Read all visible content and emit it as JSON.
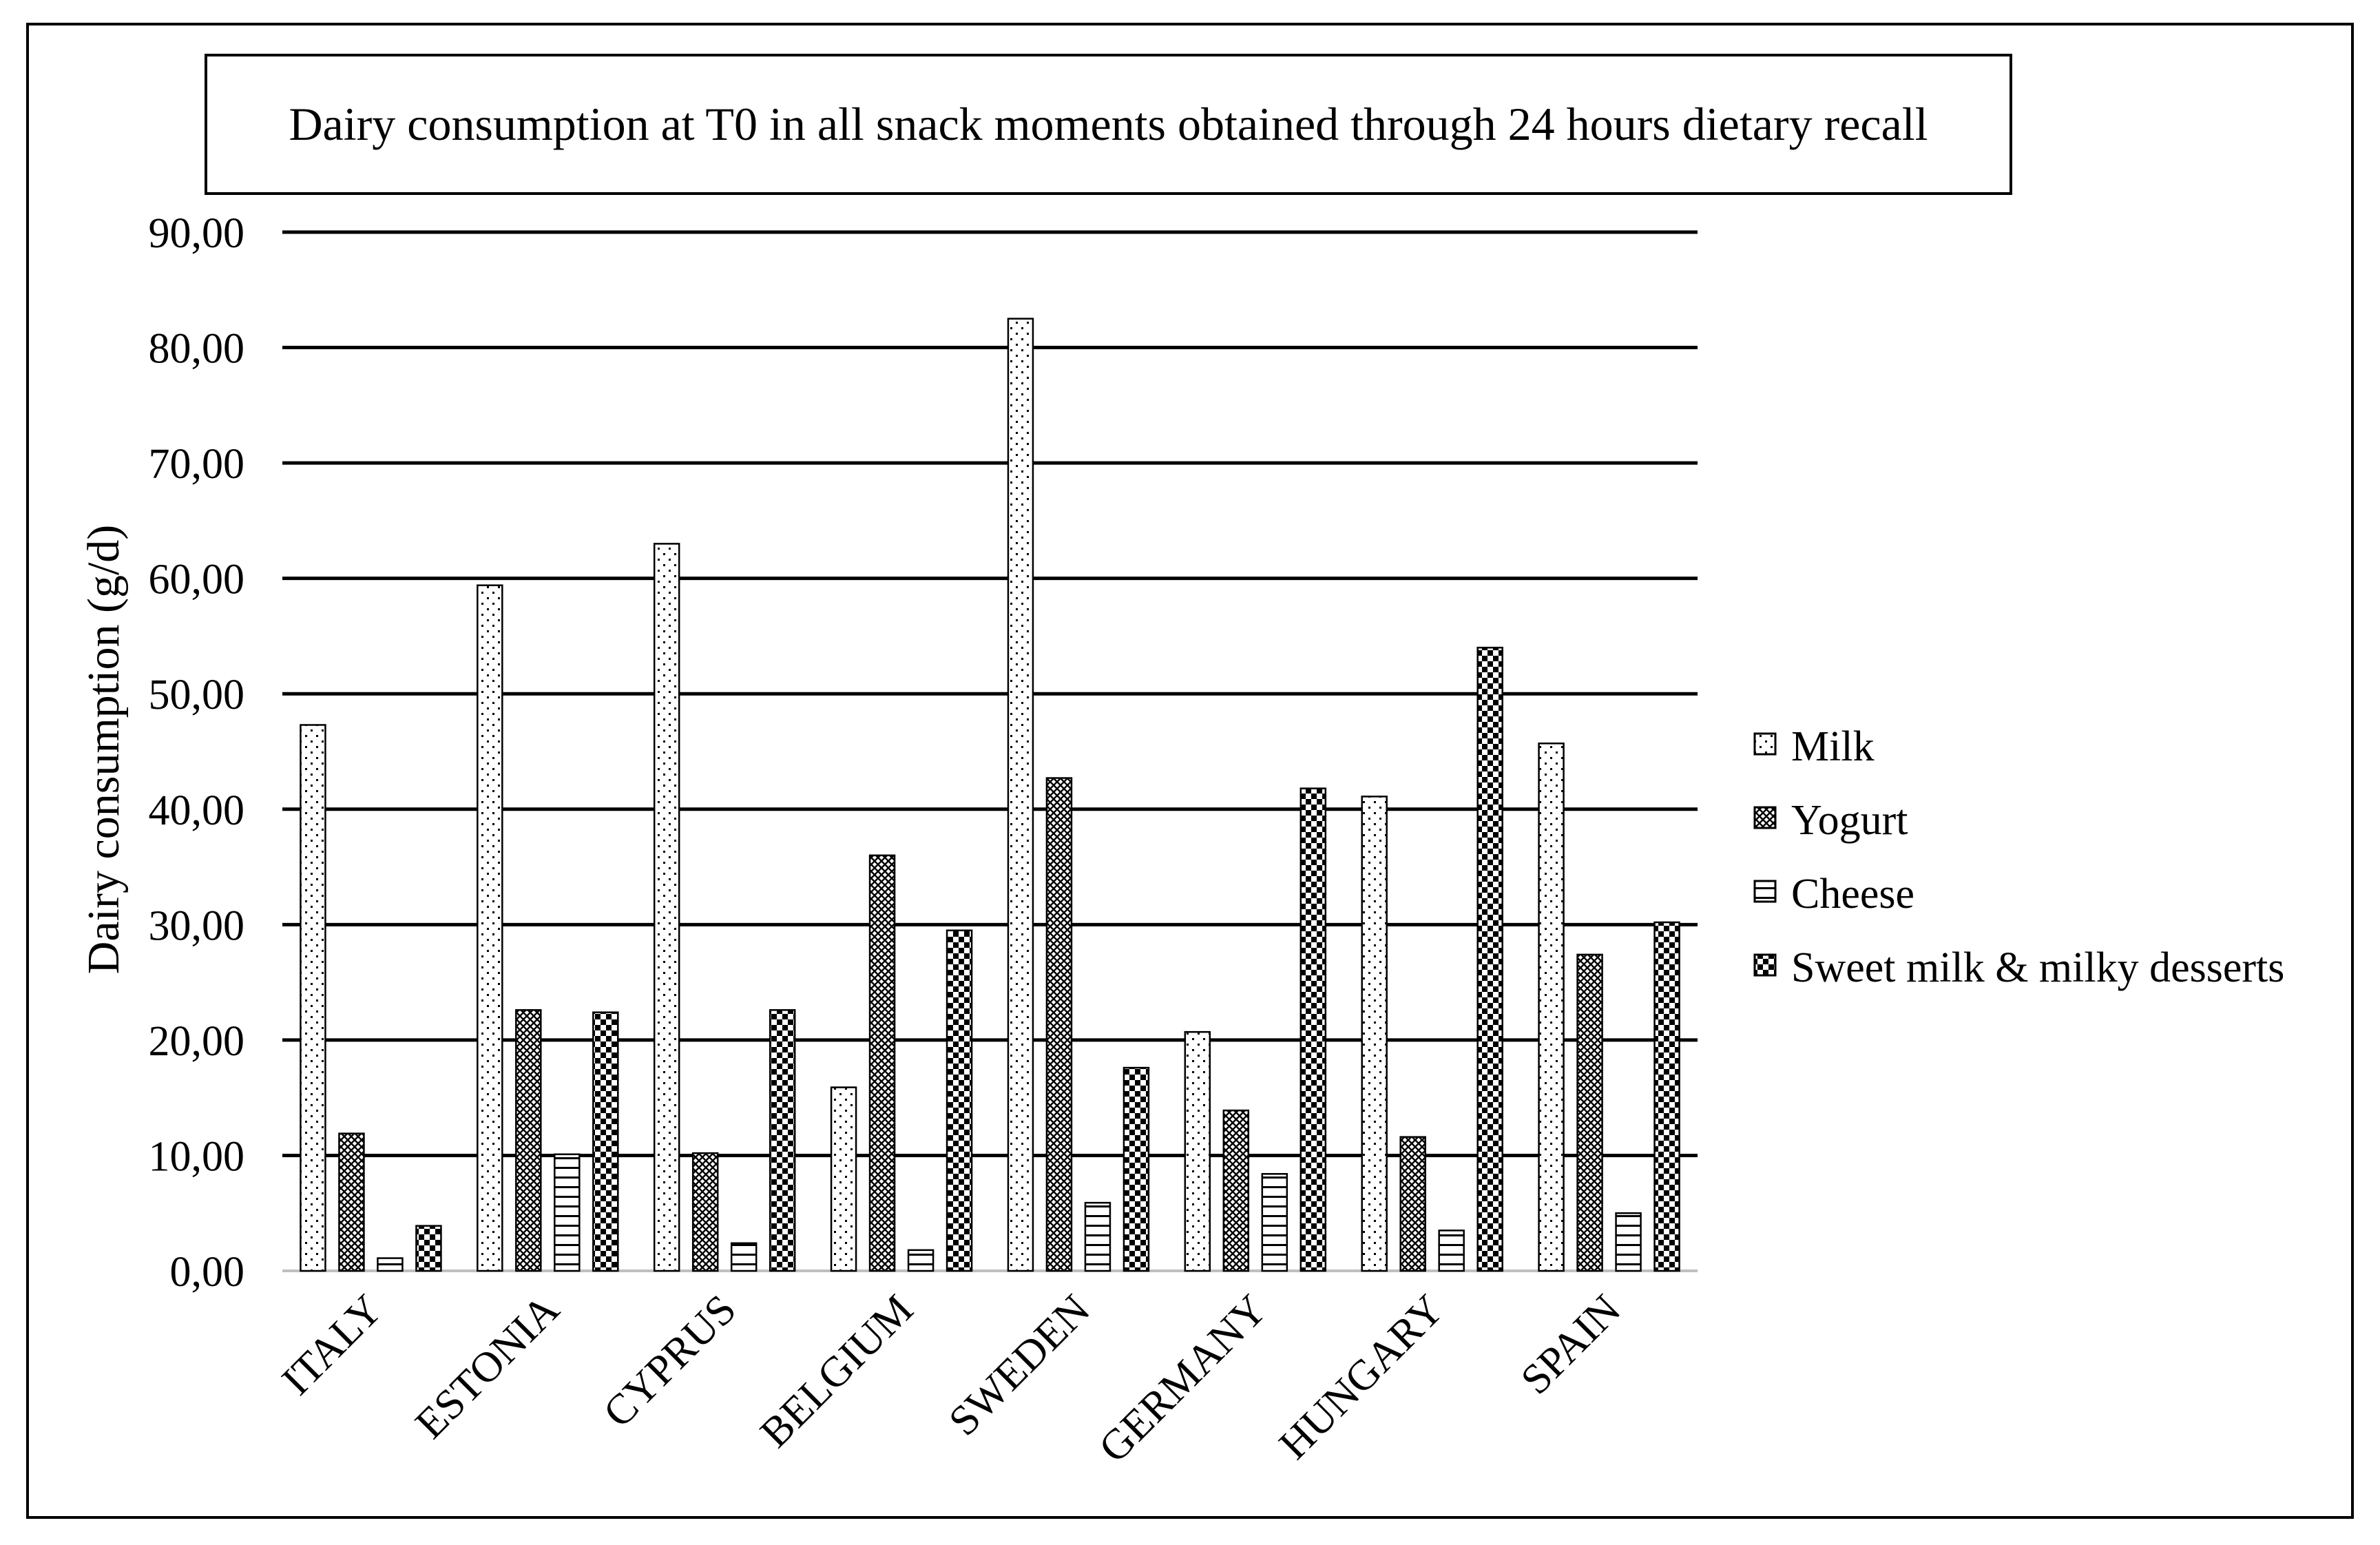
{
  "chart_data": {
    "type": "bar",
    "title": "Dairy consumption at T0 in all snack moments obtained through 24 hours dietary recall",
    "xlabel": "",
    "ylabel": "Dairy consumption  (g/d)",
    "ylim": [
      0,
      90
    ],
    "yticks": [
      "0,00",
      "10,00",
      "20,00",
      "30,00",
      "40,00",
      "50,00",
      "60,00",
      "70,00",
      "80,00",
      "90,00"
    ],
    "categories": [
      "ITALY",
      "ESTONIA",
      "CYPRUS",
      "BELGIUM",
      "SWEDEN",
      "GERMANY",
      "HUNGARY",
      "SPAIN"
    ],
    "series": [
      {
        "name": "Milk",
        "pattern": "dots",
        "values": [
          47.3,
          59.4,
          63.0,
          15.9,
          82.5,
          20.7,
          41.1,
          45.7
        ]
      },
      {
        "name": "Yogurt",
        "pattern": "crosshatch",
        "values": [
          11.9,
          22.6,
          10.2,
          36.0,
          42.7,
          13.9,
          11.6,
          27.4
        ]
      },
      {
        "name": "Cheese",
        "pattern": "hlines",
        "values": [
          1.1,
          10.1,
          2.4,
          1.8,
          5.9,
          8.4,
          3.5,
          5.0
        ]
      },
      {
        "name": "Sweet milk & milky desserts",
        "pattern": "checker",
        "values": [
          3.9,
          22.4,
          22.6,
          29.5,
          17.6,
          41.8,
          54.0,
          30.2
        ]
      }
    ],
    "grid": true,
    "legend": "right"
  }
}
